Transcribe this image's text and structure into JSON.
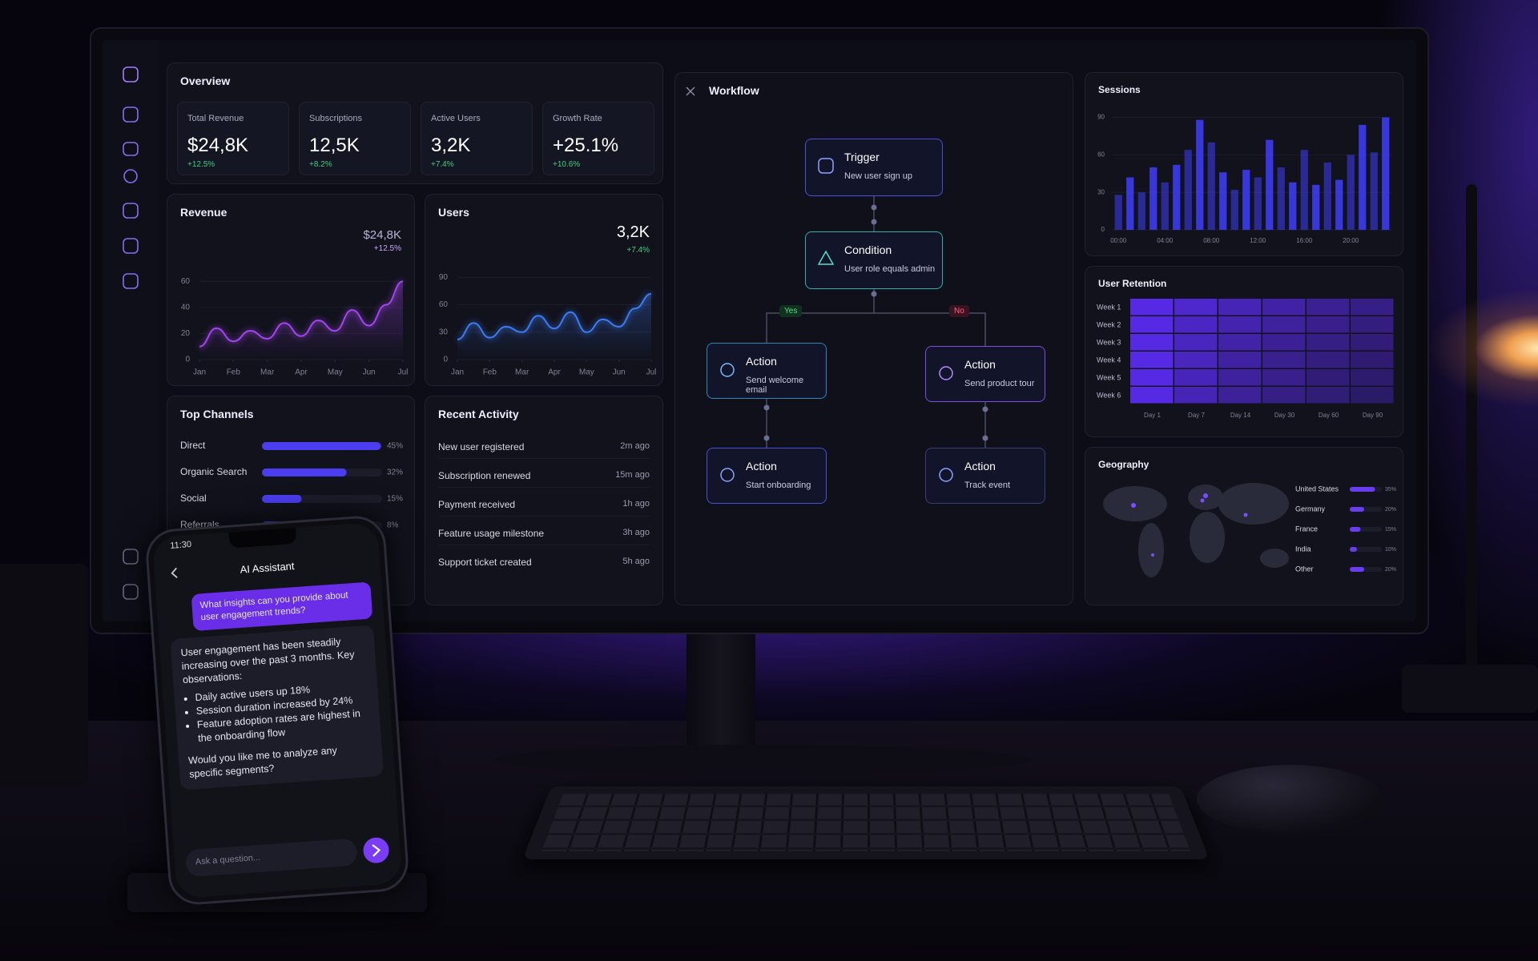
{
  "overview": {
    "title": "Overview",
    "cards": [
      {
        "label": "Total Revenue",
        "value": "$24,8K",
        "change": "+12.5%"
      },
      {
        "label": "Subscriptions",
        "value": "12,5K",
        "change": "+8.2%"
      },
      {
        "label": "Active Users",
        "value": "3,2K",
        "change": "+7.4%"
      },
      {
        "label": "Growth Rate",
        "value": "+25.1%",
        "change": "+10.6%"
      }
    ]
  },
  "revenue": {
    "type": "line",
    "title": "Revenue",
    "value": "$24,8K",
    "change": "+12.5%",
    "color": "#a445f0",
    "x": [
      0,
      0.5,
      1,
      1.5,
      2,
      2.5,
      3,
      3.5,
      4,
      4.5,
      5,
      5.5,
      6
    ],
    "values": [
      10,
      24,
      14,
      22,
      16,
      28,
      18,
      30,
      22,
      38,
      26,
      42,
      60
    ],
    "xlim": [
      0,
      6
    ],
    "xticks": [
      {
        "value": 0,
        "label": "Jan"
      },
      {
        "value": 1,
        "label": "Feb"
      },
      {
        "value": 2,
        "label": "Mar"
      },
      {
        "value": 3,
        "label": "Apr"
      },
      {
        "value": 4,
        "label": "May"
      },
      {
        "value": 5,
        "label": "Jun"
      },
      {
        "value": 6,
        "label": "Jul"
      }
    ],
    "ylim": [
      0,
      70
    ],
    "yticks": [
      0,
      20,
      40,
      60
    ]
  },
  "users": {
    "type": "line",
    "title": "Users",
    "value": "3,2K",
    "change": "+7.4%",
    "color": "#3d7bf5",
    "x": [
      0,
      0.5,
      1,
      1.5,
      2,
      2.5,
      3,
      3.5,
      4,
      4.5,
      5,
      5.5,
      6
    ],
    "values": [
      22,
      40,
      24,
      36,
      30,
      48,
      34,
      52,
      30,
      44,
      36,
      56,
      72
    ],
    "xlim": [
      0,
      6
    ],
    "xticks": [
      {
        "value": 0,
        "label": "Jan"
      },
      {
        "value": 1,
        "label": "Feb"
      },
      {
        "value": 2,
        "label": "Mar"
      },
      {
        "value": 3,
        "label": "Apr"
      },
      {
        "value": 4,
        "label": "May"
      },
      {
        "value": 5,
        "label": "Jun"
      },
      {
        "value": 6,
        "label": "Jul"
      }
    ],
    "ylim": [
      0,
      100
    ],
    "yticks": [
      0,
      30,
      60,
      90
    ]
  },
  "channels": {
    "type": "hbar",
    "title": "Top Channels",
    "categories": [
      "Direct",
      "Organic Search",
      "Social",
      "Referrals"
    ],
    "values": [
      45,
      32,
      15,
      8
    ],
    "value_labels": [
      "45%",
      "32%",
      "15%",
      "8%"
    ],
    "color": "#4b3ef0"
  },
  "activity": {
    "title": "Recent Activity",
    "items": [
      {
        "text": "New user registered",
        "time": "2m ago"
      },
      {
        "text": "Subscription renewed",
        "time": "15m ago"
      },
      {
        "text": "Payment received",
        "time": "1h ago"
      },
      {
        "text": "Feature usage milestone",
        "time": "3h ago"
      },
      {
        "text": "Support ticket created",
        "time": "5h ago"
      }
    ]
  },
  "workflow": {
    "title": "Workflow",
    "nodes": [
      {
        "title": "Trigger",
        "subtitle": "New user sign up"
      },
      {
        "title": "Condition",
        "subtitle": "User role equals admin"
      },
      {
        "title": "Action",
        "subtitle": "Send welcome email"
      },
      {
        "title": "Action",
        "subtitle": "Send product tour"
      },
      {
        "title": "Action",
        "subtitle": "Start onboarding"
      },
      {
        "title": "Action",
        "subtitle": "Track event"
      }
    ],
    "edge_labels": [
      "Yes",
      "No"
    ]
  },
  "sessions": {
    "type": "bar",
    "title": "Sessions",
    "color": "#3a3ae6",
    "categories": [
      "00:00",
      null,
      null,
      null,
      "04:00",
      null,
      null,
      null,
      "08:00",
      null,
      null,
      null,
      "12:00",
      null,
      null,
      null,
      "16:00",
      null,
      null,
      null,
      "20:00",
      null,
      null,
      null
    ],
    "values": [
      28,
      42,
      30,
      50,
      38,
      52,
      64,
      88,
      70,
      46,
      32,
      48,
      42,
      72,
      50,
      38,
      64,
      36,
      54,
      40,
      60,
      84,
      62,
      90
    ],
    "ylim": [
      0,
      100
    ],
    "yticks": [
      0,
      30,
      60,
      90
    ]
  },
  "retention": {
    "type": "heatmap",
    "title": "User Retention",
    "color": "#5b2cf0",
    "rows": [
      "Week 1",
      "Week 2",
      "Week 3",
      "Week 4",
      "Week 5",
      "Week 6"
    ],
    "columns": [
      "Day 1",
      "Day 7",
      "Day 14",
      "Day 30",
      "Day 60",
      "Day 90"
    ],
    "values": [
      [
        100,
        86,
        74,
        64,
        55,
        48
      ],
      [
        100,
        82,
        70,
        60,
        50,
        44
      ],
      [
        100,
        80,
        66,
        56,
        46,
        40
      ],
      [
        100,
        78,
        62,
        52,
        44,
        36
      ],
      [
        100,
        76,
        60,
        50,
        40,
        34
      ],
      [
        100,
        74,
        58,
        46,
        38,
        30
      ]
    ]
  },
  "geography": {
    "type": "hbar",
    "title": "Geography",
    "categories": [
      "United States",
      "Germany",
      "France",
      "India",
      "Other"
    ],
    "values": [
      35,
      20,
      15,
      10,
      20
    ],
    "value_labels": [
      "35%",
      "20%",
      "15%",
      "10%",
      "20%"
    ],
    "color": "#6a3cf0"
  },
  "phone": {
    "time": "11:30",
    "title": "AI Assistant",
    "user_message": "What insights can you provide about user engagement trends?",
    "reply_intro": "User engagement has been steadily increasing over the past 3 months. Key observations:",
    "bullets": [
      "Daily active users up 18%",
      "Session duration increased by 24%",
      "Feature adoption rates are highest in the onboarding flow"
    ],
    "reply_outro": "Would you like me to analyze any specific segments?",
    "input_placeholder": "Ask a question..."
  }
}
